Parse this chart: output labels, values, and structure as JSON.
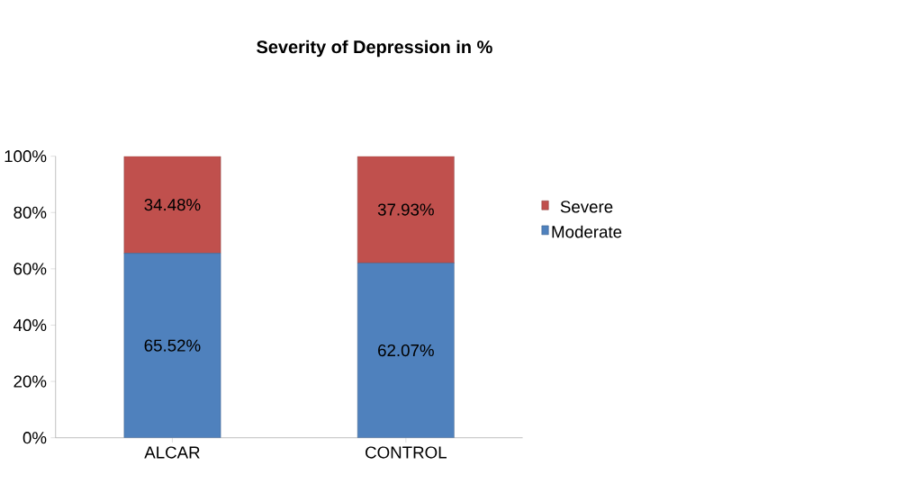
{
  "chart_data": {
    "type": "bar",
    "stacked": true,
    "title": "Severity of Depression in %",
    "categories": [
      "ALCAR",
      "CONTROL"
    ],
    "series": [
      {
        "name": "Moderate",
        "color": "#4f81bd",
        "values": [
          65.52,
          62.07
        ],
        "value_labels": [
          "65.52%",
          "62.07%"
        ]
      },
      {
        "name": "Severe",
        "color": "#c0504d",
        "values": [
          34.48,
          37.93
        ],
        "value_labels": [
          "34.48%",
          "37.93%"
        ]
      }
    ],
    "ylim": [
      0,
      100
    ],
    "yticks": [
      {
        "value": 0,
        "label": "0%"
      },
      {
        "value": 20,
        "label": "20%"
      },
      {
        "value": 40,
        "label": "40%"
      },
      {
        "value": 60,
        "label": "60%"
      },
      {
        "value": 80,
        "label": "80%"
      },
      {
        "value": 100,
        "label": "100%"
      }
    ],
    "grid": false,
    "legend": "right"
  }
}
